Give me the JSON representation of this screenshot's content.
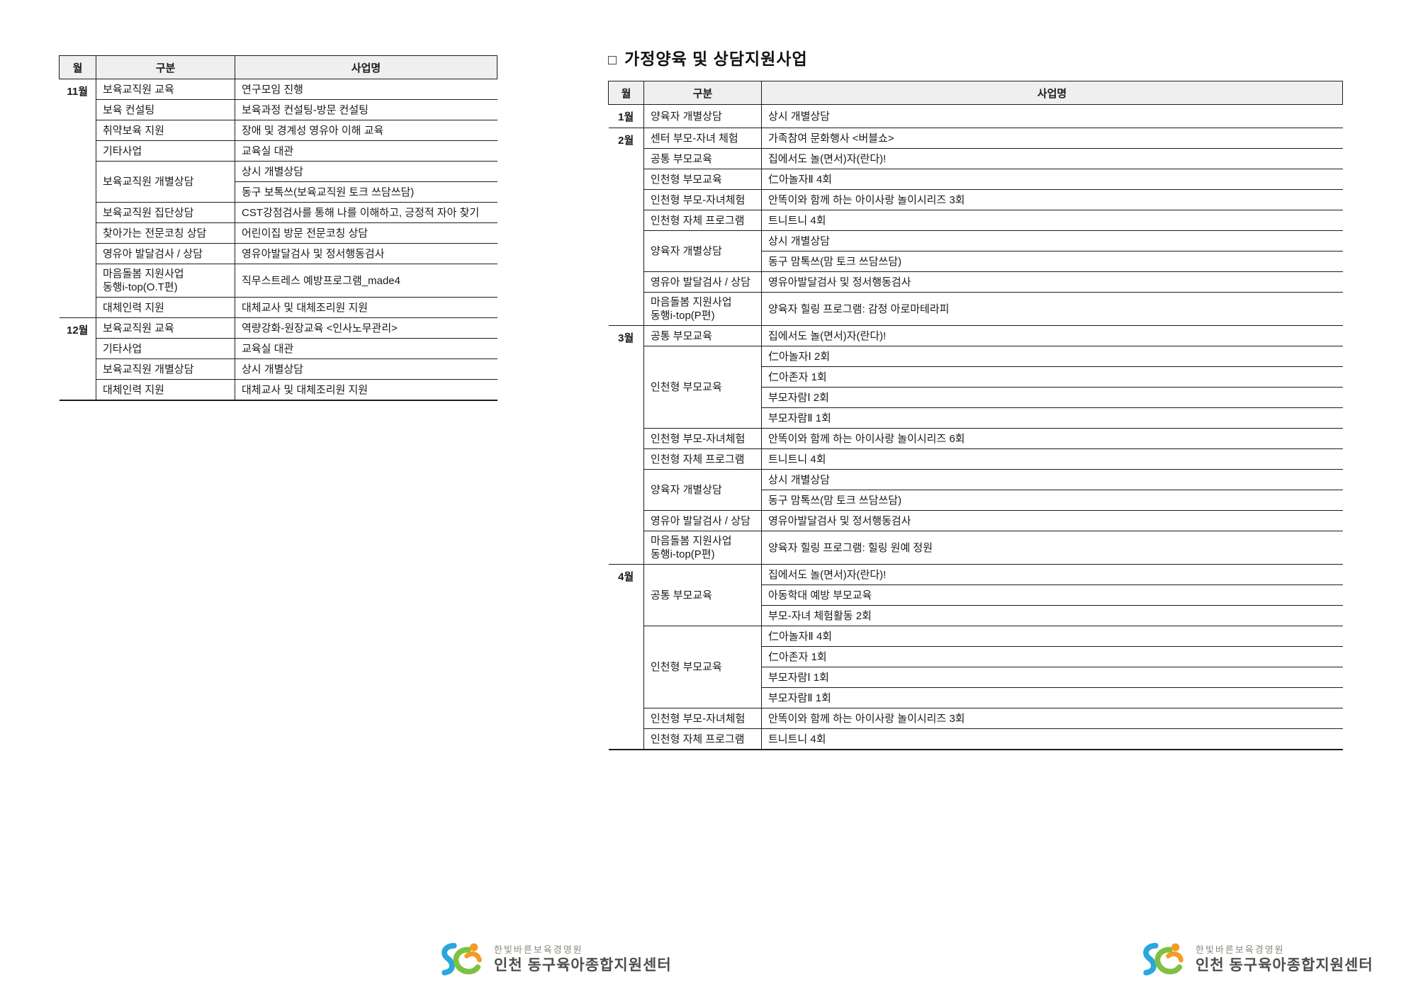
{
  "left_table": {
    "headers": [
      "월",
      "구분",
      "사업명"
    ],
    "groups": [
      {
        "month": "11월",
        "rows": [
          {
            "category": "보육교직원 교육",
            "span": 1,
            "name": "연구모임 진행"
          },
          {
            "category": "보육 컨설팅",
            "span": 1,
            "name": "보육과정 컨설팅-방문 컨설팅"
          },
          {
            "category": "취약보육 지원",
            "span": 1,
            "name": "장애 및 경계성 영유아 이해 교육"
          },
          {
            "category": "기타사업",
            "span": 1,
            "name": "교육실 대관"
          },
          {
            "category": "보육교직원 개별상담",
            "span": 2,
            "name": "상시 개별상담"
          },
          {
            "name": "동구 보톡쓰(보육교직원 토크 쓰담쓰담)"
          },
          {
            "category": "보육교직원 집단상담",
            "span": 1,
            "name": "CST강점검사를 통해 나를 이해하고, 긍정적 자아 찾기"
          },
          {
            "category": "찾아가는 전문코칭 상담",
            "span": 1,
            "name": "어린이집 방문 전문코칭 상담"
          },
          {
            "category": "영유아 발달검사 / 상담",
            "span": 1,
            "name": "영유아발달검사 및 정서행동검사"
          },
          {
            "category": "마음돌봄 지원사업\n동행i-top(O.T편)",
            "span": 1,
            "name": "직무스트레스 예방프로그램_made4"
          },
          {
            "category": "대체인력 지원",
            "span": 1,
            "name": "대체교사 및 대체조리원 지원"
          }
        ]
      },
      {
        "month": "12월",
        "rows": [
          {
            "category": "보육교직원 교육",
            "span": 1,
            "name": "역량강화-원장교육 <인사노무관리>"
          },
          {
            "category": "기타사업",
            "span": 1,
            "name": "교육실 대관"
          },
          {
            "category": "보육교직원 개별상담",
            "span": 1,
            "name": "상시 개별상담"
          },
          {
            "category": "대체인력 지원",
            "span": 1,
            "name": "대체교사 및 대체조리원 지원"
          }
        ]
      }
    ]
  },
  "right_section": {
    "bullet": "□",
    "title": "가정양육 및 상담지원사업"
  },
  "right_table": {
    "headers": [
      "월",
      "구분",
      "사업명"
    ],
    "groups": [
      {
        "month": "1월",
        "rows": [
          {
            "category": "양육자 개별상담",
            "span": 1,
            "name": "상시 개별상담"
          }
        ]
      },
      {
        "month": "2월",
        "rows": [
          {
            "category": "센터 부모-자녀 체험",
            "span": 1,
            "name": "가족참여 문화행사 <버블쇼>"
          },
          {
            "category": "공통 부모교육",
            "span": 1,
            "name": "집에서도 놀(면서)자(란다)!"
          },
          {
            "category": "인천형 부모교육",
            "span": 1,
            "name": "仁아놀자Ⅱ 4회"
          },
          {
            "category": "인천형 부모-자녀체험",
            "span": 1,
            "name": "안똑이와 함께 하는 아이사랑 놀이시리즈 3회"
          },
          {
            "category": "인천형 자체 프로그램",
            "span": 1,
            "name": "트니트니 4회"
          },
          {
            "category": "양육자 개별상담",
            "span": 2,
            "name": "상시 개별상담"
          },
          {
            "name": "동구 맘톡쓰(맘 토크 쓰담쓰담)"
          },
          {
            "category": "영유아 발달검사 / 상담",
            "span": 1,
            "name": "영유아발달검사 및 정서행동검사"
          },
          {
            "category": "마음돌봄 지원사업\n동행i-top(P편)",
            "span": 1,
            "name": "양육자 힐링 프로그램: 감정 아로마테라피"
          }
        ]
      },
      {
        "month": "3월",
        "rows": [
          {
            "category": "공통 부모교육",
            "span": 1,
            "name": "집에서도 놀(면서)자(란다)!"
          },
          {
            "category": "인천형 부모교육",
            "span": 4,
            "name": "仁아놀자Ⅰ 2회"
          },
          {
            "name": "仁아존자 1회"
          },
          {
            "name": "부모자람Ⅰ 2회"
          },
          {
            "name": "부모자람Ⅱ 1회"
          },
          {
            "category": "인천형 부모-자녀체험",
            "span": 1,
            "name": "안똑이와 함께 하는 아이사랑 놀이시리즈 6회"
          },
          {
            "category": "인천형 자체 프로그램",
            "span": 1,
            "name": "트니트니 4회"
          },
          {
            "category": "양육자 개별상담",
            "span": 2,
            "name": "상시 개별상담"
          },
          {
            "name": "동구 맘톡쓰(맘 토크 쓰담쓰담)"
          },
          {
            "category": "영유아 발달검사 / 상담",
            "span": 1,
            "name": "영유아발달검사 및 정서행동검사"
          },
          {
            "category": "마음돌봄 지원사업\n동행i-top(P편)",
            "span": 1,
            "name": "양육자 힐링 프로그램: 힐링 원예 정원"
          }
        ]
      },
      {
        "month": "4월",
        "rows": [
          {
            "category": "공통 부모교육",
            "span": 3,
            "name": "집에서도 놀(면서)자(란다)!"
          },
          {
            "name": "아동학대 예방 부모교육"
          },
          {
            "name": "부모-자녀 체험활동 2회"
          },
          {
            "category": "인천형 부모교육",
            "span": 4,
            "name": "仁아놀자Ⅱ 4회"
          },
          {
            "name": "仁아존자 1회"
          },
          {
            "name": "부모자람Ⅰ 1회"
          },
          {
            "name": "부모자람Ⅱ 1회"
          },
          {
            "category": "인천형 부모-자녀체험",
            "span": 1,
            "name": "안똑이와 함께 하는 아이사랑 놀이시리즈 3회"
          },
          {
            "category": "인천형 자체 프로그램",
            "span": 1,
            "name": "트니트니 4회"
          }
        ]
      }
    ]
  },
  "footer": {
    "org_small": "한빛바른보육경영원",
    "org_main": "인천 동구육아종합지원센터"
  },
  "logo_colors": {
    "blue": "#2aa7dd",
    "green": "#7ec141",
    "orange": "#f49b20"
  }
}
